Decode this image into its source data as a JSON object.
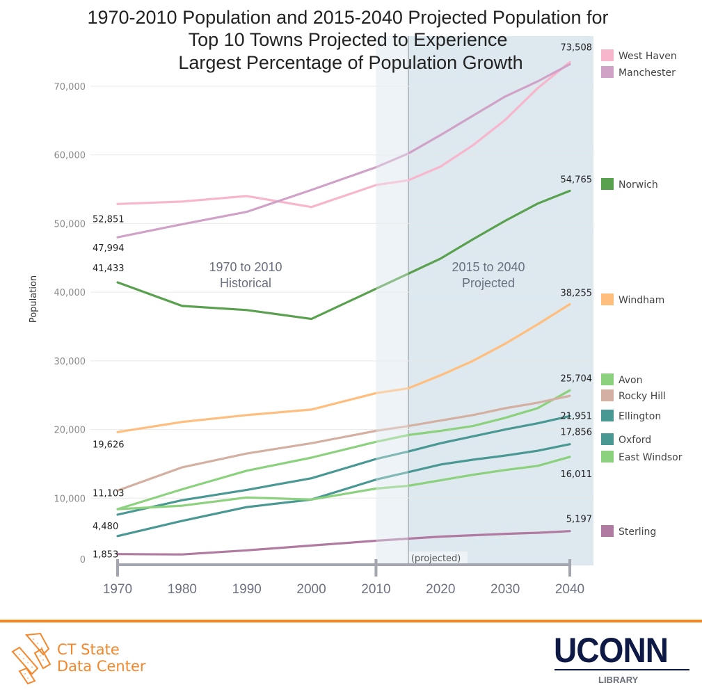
{
  "chart_data": {
    "type": "line",
    "title": [
      "1970-2010 Population and 2015-2040 Projected Population for",
      "Top 10 Towns Projected to Experience",
      "Largest Percentage of Population Growth"
    ],
    "xlabel": "",
    "ylabel": "Population",
    "ylim": [
      0,
      75000
    ],
    "yticks": [
      0,
      10000,
      20000,
      30000,
      40000,
      50000,
      60000,
      70000
    ],
    "ytick_labels": [
      "0",
      "10,000",
      "20,000",
      "30,000",
      "40,000",
      "50,000",
      "60,000",
      "70,000"
    ],
    "xlim": [
      1970,
      2040
    ],
    "xticks": [
      1970,
      1980,
      1990,
      2000,
      2010,
      2020,
      2030,
      2040
    ],
    "xtick_labels": [
      "1970",
      "1980",
      "1990",
      "2000",
      "2010",
      "2020",
      "2030",
      "2040"
    ],
    "grid": true,
    "legend_position": "right",
    "x": [
      1970,
      1980,
      1990,
      2000,
      2010,
      2015,
      2020,
      2025,
      2030,
      2035,
      2040
    ],
    "annotations": {
      "historical": [
        "1970 to 2010",
        "Historical"
      ],
      "projected": [
        "2015 to 2040",
        "Projected"
      ],
      "projected_tag": "(projected)",
      "historical_range": [
        1970,
        2010
      ],
      "projected_range": [
        2015,
        2040
      ]
    },
    "series": [
      {
        "name": "West Haven",
        "color": "#f7b6cc",
        "values": [
          52851,
          53200,
          54000,
          52400,
          55600,
          56300,
          58300,
          61400,
          65100,
          69700,
          73508
        ],
        "start_label": "52,851",
        "end_label": "73,508"
      },
      {
        "name": "Manchester",
        "color": "#d0a2c8",
        "values": [
          47994,
          49900,
          51700,
          54900,
          58200,
          60200,
          62900,
          65700,
          68500,
          70700,
          73200
        ],
        "start_label": "47,994",
        "end_label": ""
      },
      {
        "name": "Norwich",
        "color": "#59a14f",
        "values": [
          41433,
          38000,
          37400,
          36100,
          40500,
          42700,
          44900,
          47700,
          50400,
          52900,
          54765
        ],
        "start_label": "41,433",
        "end_label": "54,765"
      },
      {
        "name": "Windham",
        "color": "#ffbe7d",
        "values": [
          19626,
          21100,
          22100,
          22900,
          25300,
          26000,
          27900,
          30000,
          32500,
          35300,
          38255
        ],
        "start_label": "19,626",
        "end_label": "38,255"
      },
      {
        "name": "Avon",
        "color": "#8cd17d",
        "values": [
          8400,
          11300,
          14000,
          15900,
          18200,
          19200,
          19800,
          20500,
          21700,
          23100,
          25704
        ],
        "start_label": "",
        "end_label": "25,704"
      },
      {
        "name": "Rocky Hill",
        "color": "#d4b0a2",
        "values": [
          11103,
          14500,
          16500,
          18000,
          19800,
          20500,
          21300,
          22100,
          23100,
          23900,
          24900
        ],
        "start_label": "11,103",
        "end_label": ""
      },
      {
        "name": "Ellington",
        "color": "#499894",
        "values": [
          7600,
          9700,
          11200,
          12900,
          15700,
          16800,
          18000,
          19000,
          20000,
          20900,
          21951
        ],
        "start_label": "",
        "end_label": "21,951"
      },
      {
        "name": "Oxford",
        "color": "#499894",
        "values": [
          4480,
          6700,
          8700,
          9800,
          12700,
          13800,
          14900,
          15600,
          16200,
          16900,
          17856
        ],
        "start_label": "4,480",
        "end_label": "17,856"
      },
      {
        "name": "East Windsor",
        "color": "#8cd17d",
        "values": [
          8400,
          8900,
          10100,
          9800,
          11400,
          11800,
          12600,
          13400,
          14100,
          14700,
          16011
        ],
        "start_label": "",
        "end_label": "16,011"
      },
      {
        "name": "Sterling",
        "color": "#b07aa1",
        "values": [
          1853,
          1800,
          2400,
          3100,
          3800,
          4100,
          4400,
          4600,
          4800,
          4950,
          5197
        ],
        "start_label": "1,853",
        "end_label": "5,197"
      }
    ]
  },
  "footer": {
    "left_logo": {
      "line1": "CT State",
      "line2": "Data Center",
      "icon": "ct-state-data-center-logo-icon"
    },
    "right_logo": {
      "word": "UCONN",
      "sub": "LIBRARY"
    },
    "accent_color": "#f7861e"
  }
}
